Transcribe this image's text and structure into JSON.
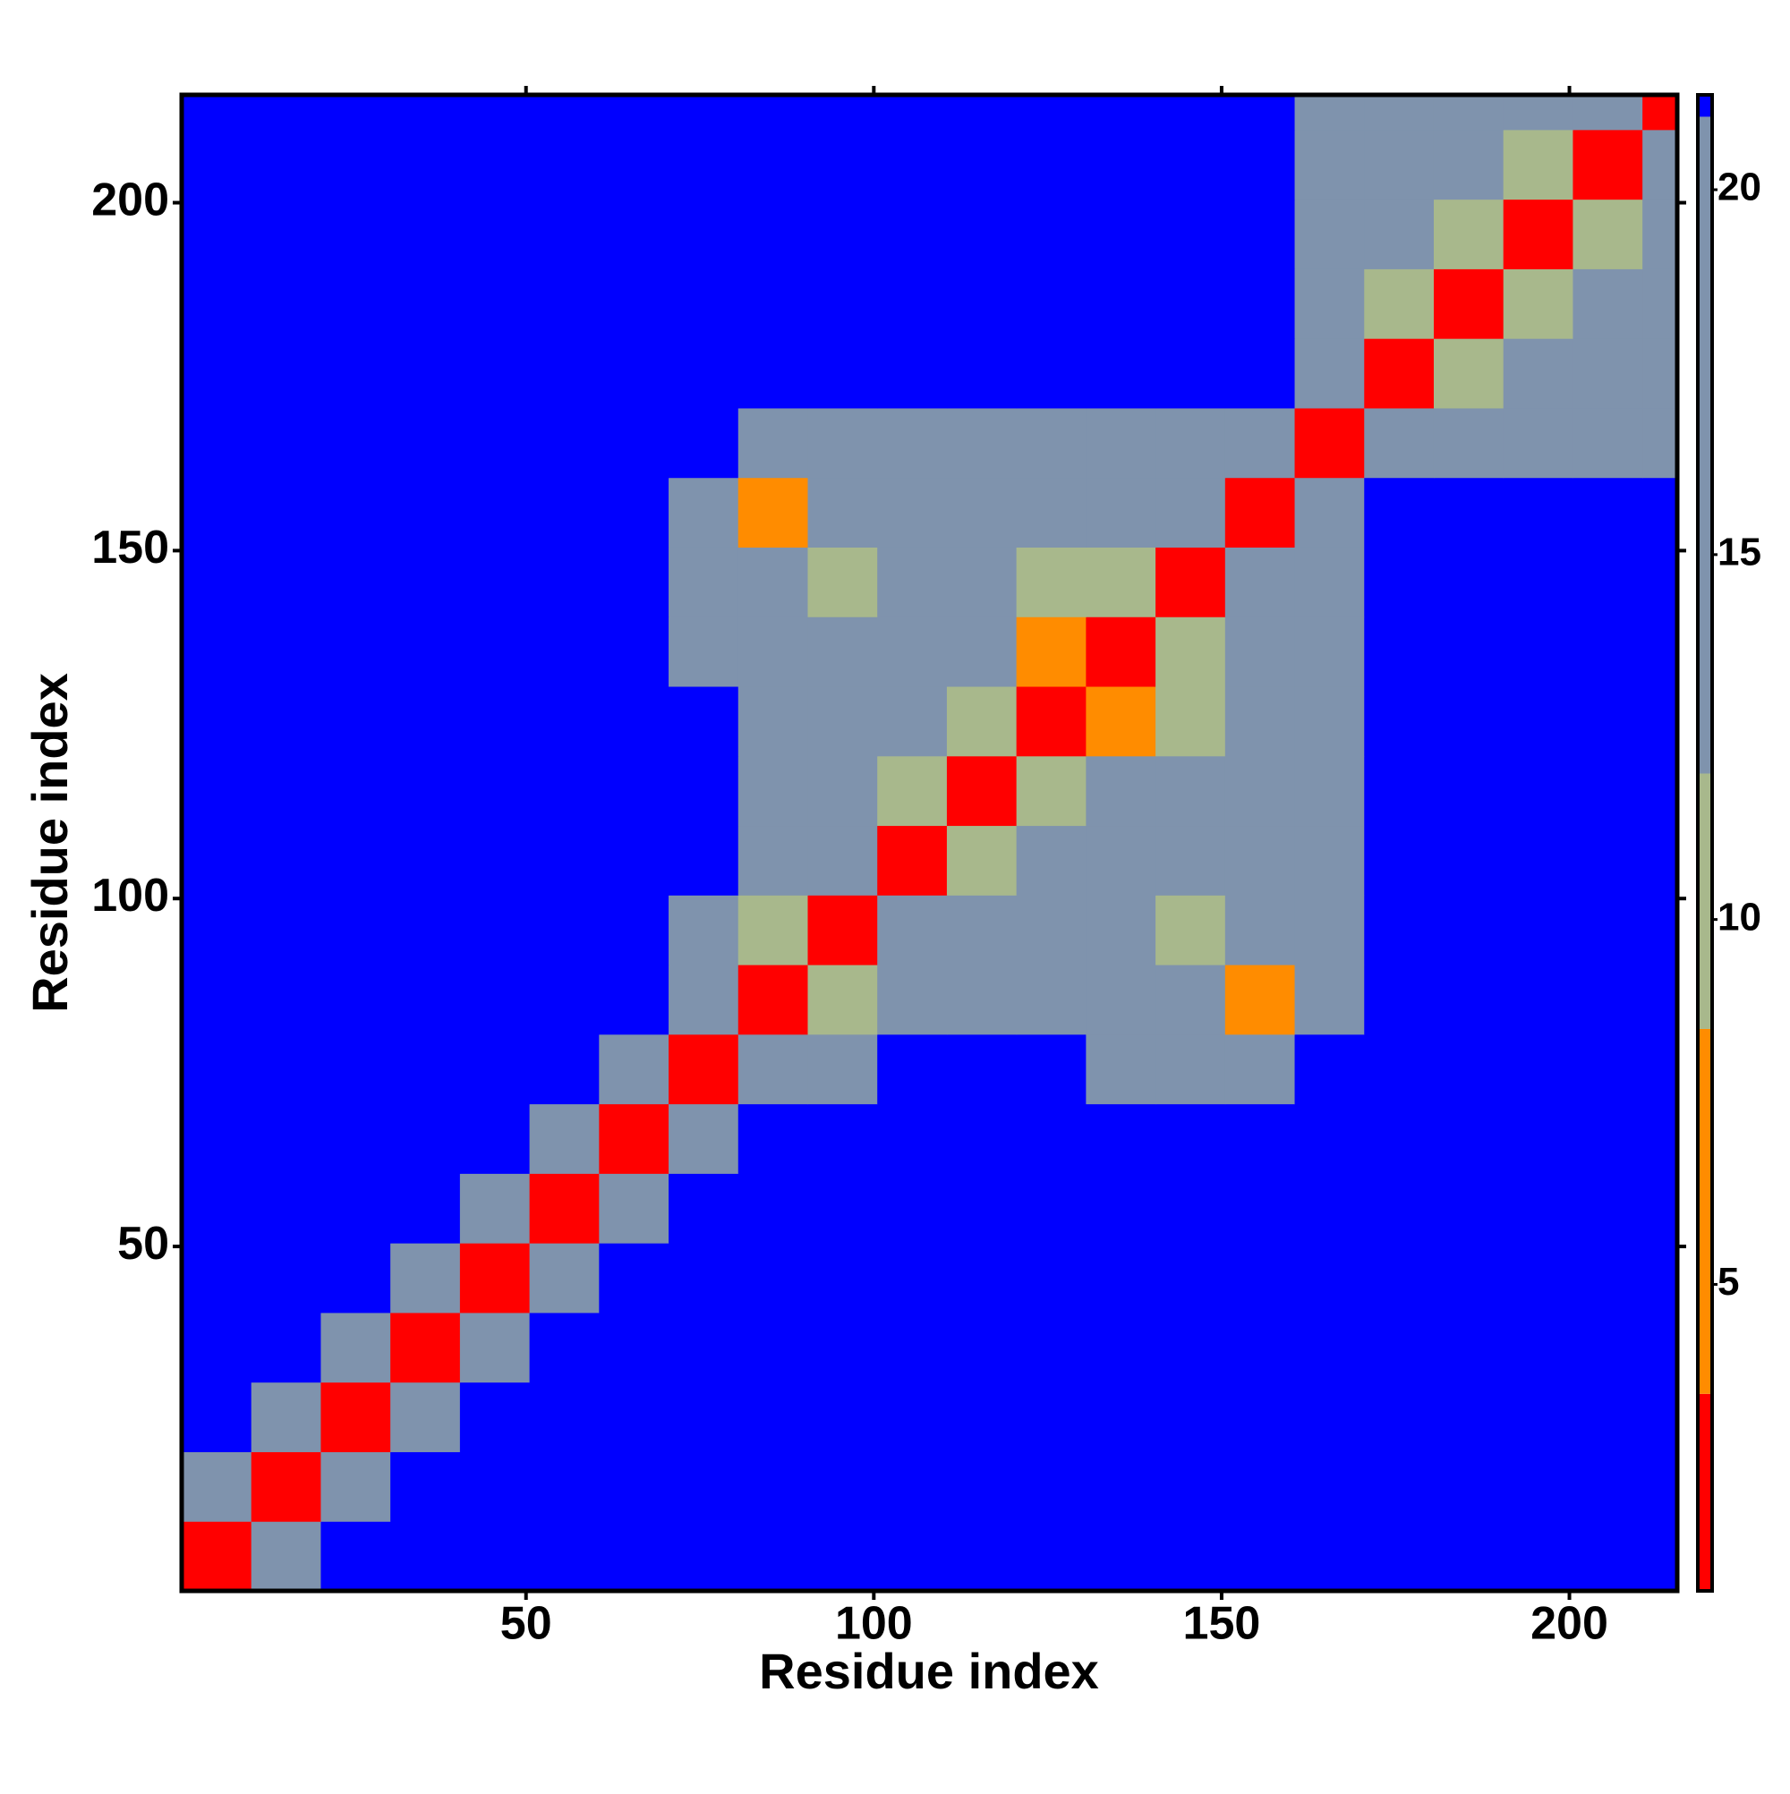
{
  "chart_data": {
    "type": "heatmap",
    "xlabel": "Residue index",
    "ylabel": "Residue index",
    "x_bins": [
      0.5,
      10.5,
      20.5,
      30.5,
      40.5,
      50.5,
      60.5,
      70.5,
      80.5,
      90.5,
      100.5,
      110.5,
      120.5,
      130.5,
      140.5,
      150.5,
      160.5,
      170.5,
      180.5,
      190.5,
      200.5,
      210.5,
      215.5
    ],
    "y_bins": [
      0.5,
      10.5,
      20.5,
      30.5,
      40.5,
      50.5,
      60.5,
      70.5,
      80.5,
      90.5,
      100.5,
      110.5,
      120.5,
      130.5,
      140.5,
      150.5,
      160.5,
      170.5,
      180.5,
      190.5,
      200.5,
      210.5,
      215.5
    ],
    "values": [
      [
        3,
        20,
        21,
        21,
        21,
        21,
        21,
        21,
        21,
        21,
        21,
        21,
        21,
        21,
        21,
        21,
        21,
        21,
        21,
        21,
        21,
        21
      ],
      [
        20,
        3,
        20,
        21,
        21,
        21,
        21,
        21,
        21,
        21,
        21,
        21,
        21,
        21,
        21,
        21,
        21,
        21,
        21,
        21,
        21,
        21
      ],
      [
        21,
        20,
        3,
        18,
        21,
        21,
        21,
        21,
        21,
        21,
        21,
        21,
        21,
        21,
        21,
        21,
        21,
        21,
        21,
        21,
        21,
        21
      ],
      [
        21,
        21,
        18,
        3,
        14,
        21,
        21,
        21,
        21,
        21,
        21,
        21,
        21,
        21,
        21,
        21,
        21,
        21,
        21,
        21,
        21,
        21
      ],
      [
        21,
        21,
        21,
        14,
        3,
        16,
        21,
        21,
        21,
        21,
        21,
        21,
        21,
        21,
        21,
        21,
        21,
        21,
        21,
        21,
        21,
        21
      ],
      [
        21,
        21,
        21,
        21,
        16,
        3,
        13,
        21,
        21,
        21,
        21,
        21,
        21,
        21,
        21,
        21,
        21,
        21,
        21,
        21,
        21,
        21
      ],
      [
        21,
        21,
        21,
        21,
        21,
        13,
        3,
        13,
        21,
        21,
        21,
        21,
        21,
        21,
        21,
        21,
        21,
        21,
        21,
        21,
        21,
        21
      ],
      [
        21,
        21,
        21,
        21,
        21,
        21,
        13,
        3,
        15,
        19,
        21,
        21,
        21,
        20,
        18,
        19,
        21,
        21,
        21,
        21,
        21,
        21
      ],
      [
        21,
        21,
        21,
        21,
        21,
        21,
        21,
        15,
        3,
        11,
        15,
        16,
        15,
        15,
        14,
        8,
        19,
        21,
        21,
        21,
        21,
        21
      ],
      [
        21,
        21,
        21,
        21,
        21,
        21,
        21,
        19,
        11,
        3,
        12,
        14,
        14,
        14,
        10,
        15,
        19,
        21,
        21,
        21,
        21,
        21
      ],
      [
        21,
        21,
        21,
        21,
        21,
        21,
        21,
        21,
        15,
        12,
        3,
        11,
        13,
        17,
        13,
        15,
        18,
        21,
        21,
        21,
        21,
        21
      ],
      [
        21,
        21,
        21,
        21,
        21,
        21,
        21,
        21,
        16,
        14,
        11,
        3,
        10,
        15,
        16,
        15,
        18,
        21,
        21,
        21,
        21,
        21
      ],
      [
        21,
        21,
        21,
        21,
        21,
        21,
        21,
        21,
        15,
        14,
        13,
        10,
        3,
        8,
        9,
        15,
        18,
        21,
        21,
        21,
        21,
        21
      ],
      [
        21,
        21,
        21,
        21,
        21,
        21,
        21,
        20,
        15,
        14,
        17,
        15,
        8,
        3,
        11,
        16,
        20,
        21,
        21,
        21,
        21,
        21
      ],
      [
        21,
        21,
        21,
        21,
        21,
        21,
        21,
        18,
        14,
        10,
        13,
        16,
        9,
        11,
        3,
        12,
        19,
        21,
        21,
        21,
        21,
        21
      ],
      [
        21,
        21,
        21,
        21,
        21,
        21,
        21,
        19,
        8,
        15,
        15,
        15,
        15,
        16,
        12,
        3,
        14,
        21,
        21,
        21,
        21,
        21
      ],
      [
        21,
        21,
        21,
        21,
        21,
        21,
        21,
        21,
        19,
        19,
        18,
        18,
        18,
        20,
        19,
        14,
        3,
        13,
        17,
        20,
        15,
        14
      ],
      [
        21,
        21,
        21,
        21,
        21,
        21,
        21,
        21,
        21,
        21,
        21,
        21,
        21,
        21,
        21,
        21,
        13,
        3,
        11,
        14,
        15,
        13
      ],
      [
        21,
        21,
        21,
        21,
        21,
        21,
        21,
        21,
        21,
        21,
        21,
        21,
        21,
        21,
        21,
        21,
        17,
        11,
        3,
        10,
        14,
        14
      ],
      [
        21,
        21,
        21,
        21,
        21,
        21,
        21,
        21,
        21,
        21,
        21,
        21,
        21,
        21,
        21,
        21,
        20,
        14,
        10,
        3,
        11,
        13
      ],
      [
        21,
        21,
        21,
        21,
        21,
        21,
        21,
        21,
        21,
        21,
        21,
        21,
        21,
        21,
        21,
        21,
        15,
        15,
        14,
        11,
        3,
        12
      ],
      [
        21,
        21,
        21,
        21,
        21,
        21,
        21,
        21,
        21,
        21,
        21,
        21,
        21,
        21,
        21,
        21,
        14,
        13,
        14,
        13,
        12,
        3
      ]
    ],
    "xlim": [
      0.5,
      215.5
    ],
    "ylim": [
      0.5,
      215.5
    ],
    "xticks": [
      50,
      100,
      150,
      200
    ],
    "yticks": [
      50,
      100,
      150,
      200
    ],
    "zlim": [
      0.8,
      21.3
    ],
    "zticks": [
      5,
      10,
      15,
      20
    ],
    "color_bounds": [
      3.5,
      8.5,
      12,
      21
    ],
    "colors": [
      "#ff0000",
      "#ff8c00",
      "#a8b88c",
      "#7f93ad",
      "#0000ff"
    ]
  }
}
